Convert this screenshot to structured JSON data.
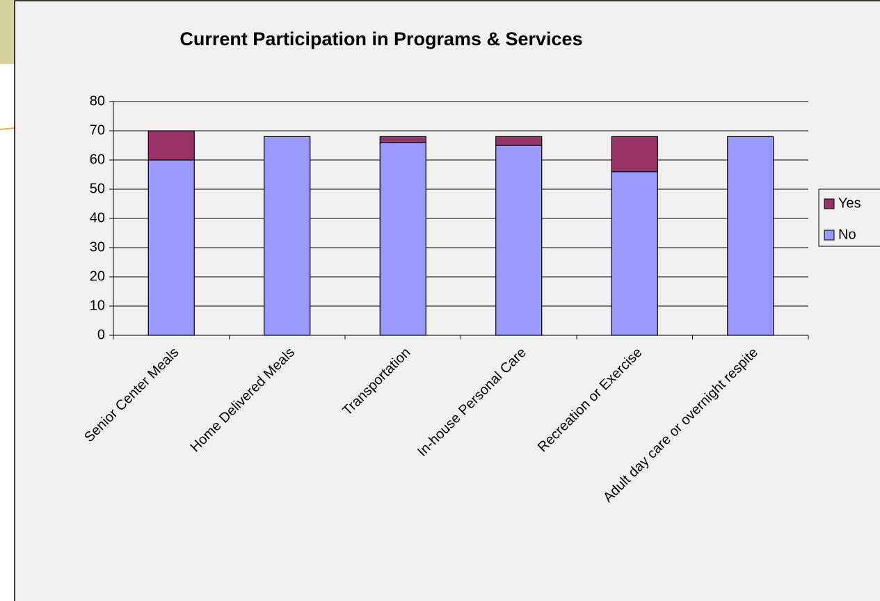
{
  "chart_data": {
    "type": "stacked_bar",
    "title": "Current Participation in Programs & Services",
    "categories": [
      "Senior Center Meals",
      "Home Delivered Meals",
      "Transportation",
      "In-house Personal Care",
      "Recreation or Exercise",
      "Adult day care or overnight respite"
    ],
    "series": [
      {
        "name": "No",
        "color": "#9999ff",
        "values": [
          60,
          68,
          66,
          65,
          56,
          68
        ]
      },
      {
        "name": "Yes",
        "color": "#993366",
        "values": [
          10,
          0,
          2,
          3,
          12,
          0
        ]
      }
    ],
    "ylim": [
      0,
      80
    ],
    "yticks": [
      0,
      10,
      20,
      30,
      40,
      50,
      60,
      70,
      80
    ],
    "grid": true,
    "legend": "right"
  }
}
